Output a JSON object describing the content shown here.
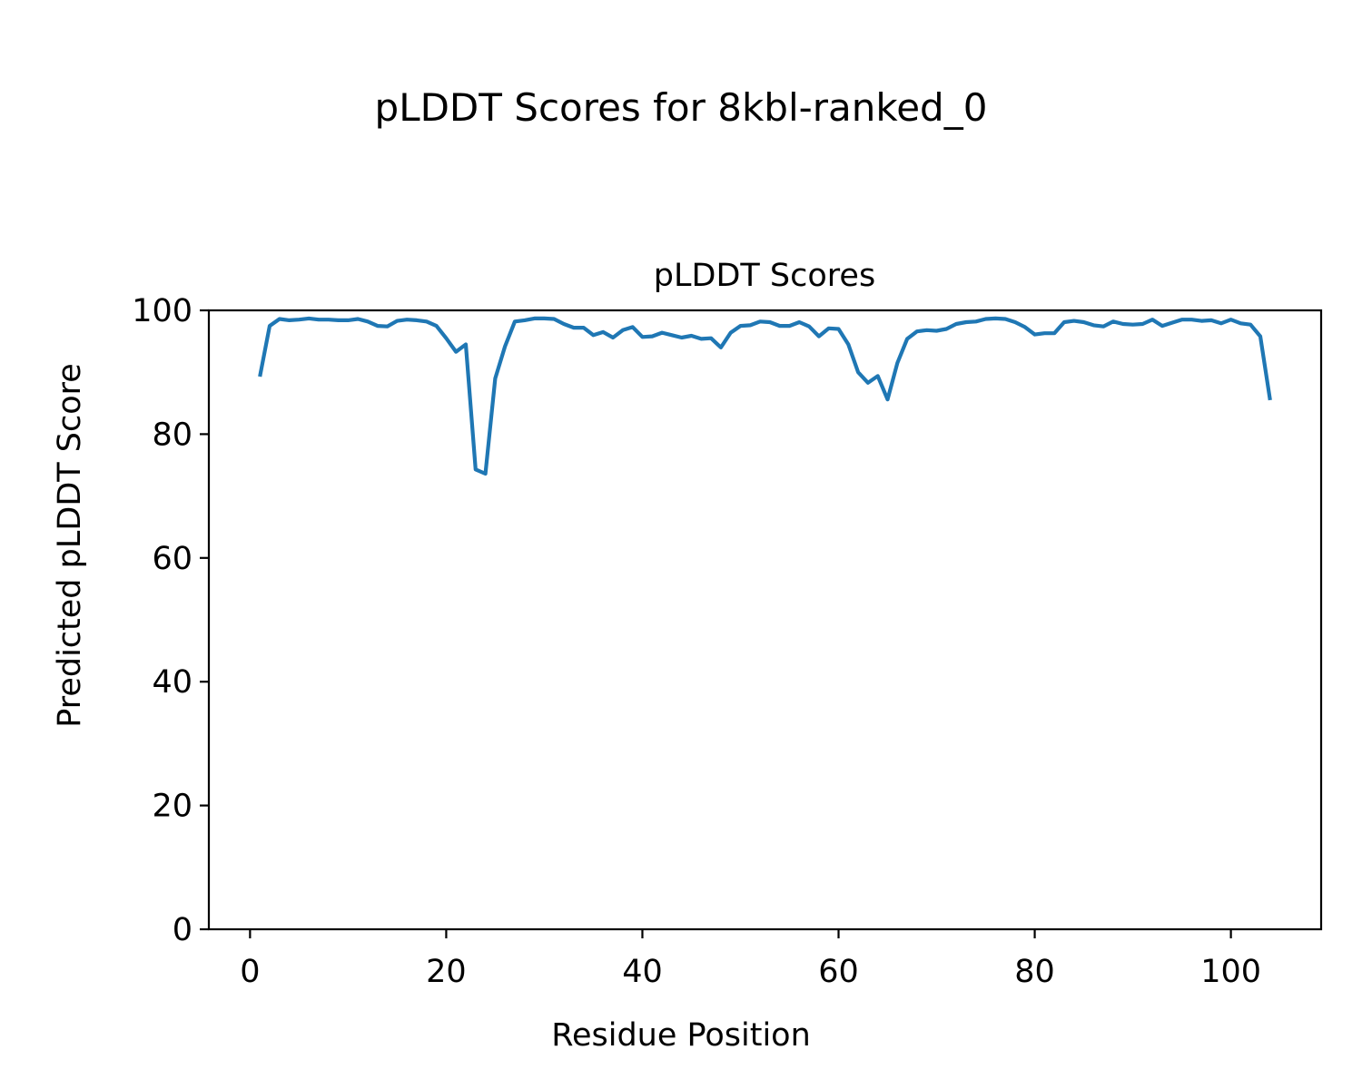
{
  "chart_data": {
    "type": "line",
    "title": "pLDDT Scores for 8kbl-ranked_0",
    "subtitle": "pLDDT Scores",
    "xlabel": "Residue Position",
    "ylabel": "Predicted pLDDT Score",
    "xlim": [
      -4.2,
      109.2
    ],
    "ylim": [
      0,
      100
    ],
    "xticks": [
      0,
      20,
      40,
      60,
      80,
      100
    ],
    "yticks": [
      0,
      20,
      40,
      60,
      80,
      100
    ],
    "grid": false,
    "series": [
      {
        "color": "#1f77b4",
        "x": [
          1,
          2,
          3,
          4,
          5,
          6,
          7,
          8,
          9,
          10,
          11,
          12,
          13,
          14,
          15,
          16,
          17,
          18,
          19,
          20,
          21,
          22,
          23,
          24,
          25,
          26,
          27,
          28,
          29,
          30,
          31,
          32,
          33,
          34,
          35,
          36,
          37,
          38,
          39,
          40,
          41,
          42,
          43,
          44,
          45,
          46,
          47,
          48,
          49,
          50,
          51,
          52,
          53,
          54,
          55,
          56,
          57,
          58,
          59,
          60,
          61,
          62,
          63,
          64,
          65,
          66,
          67,
          68,
          69,
          70,
          71,
          72,
          73,
          74,
          75,
          76,
          77,
          78,
          79,
          80,
          81,
          82,
          83,
          84,
          85,
          86,
          87,
          88,
          89,
          90,
          91,
          92,
          93,
          94,
          95,
          96,
          97,
          98,
          99,
          100,
          101,
          102,
          103,
          104
        ],
        "y": [
          89.3,
          97.5,
          98.6,
          98.4,
          98.5,
          98.7,
          98.5,
          98.5,
          98.4,
          98.4,
          98.6,
          98.2,
          97.5,
          97.4,
          98.3,
          98.5,
          98.4,
          98.2,
          97.5,
          95.5,
          93.3,
          94.5,
          74.3,
          73.6,
          89.0,
          94.2,
          98.2,
          98.4,
          98.7,
          98.7,
          98.6,
          97.8,
          97.2,
          97.2,
          96.0,
          96.5,
          95.6,
          96.8,
          97.3,
          95.7,
          95.8,
          96.4,
          96.0,
          95.6,
          95.9,
          95.4,
          95.5,
          94.0,
          96.4,
          97.5,
          97.6,
          98.2,
          98.1,
          97.5,
          97.5,
          98.1,
          97.4,
          95.8,
          97.1,
          97.0,
          94.5,
          90.0,
          88.3,
          89.4,
          85.6,
          91.5,
          95.4,
          96.6,
          96.8,
          96.7,
          97.0,
          97.8,
          98.1,
          98.2,
          98.6,
          98.7,
          98.6,
          98.1,
          97.3,
          96.1,
          96.3,
          96.3,
          98.1,
          98.3,
          98.1,
          97.6,
          97.4,
          98.2,
          97.8,
          97.7,
          97.8,
          98.5,
          97.5,
          98.0,
          98.5,
          98.5,
          98.3,
          98.4,
          97.9,
          98.5,
          97.9,
          97.7,
          95.8,
          85.5
        ]
      }
    ]
  }
}
